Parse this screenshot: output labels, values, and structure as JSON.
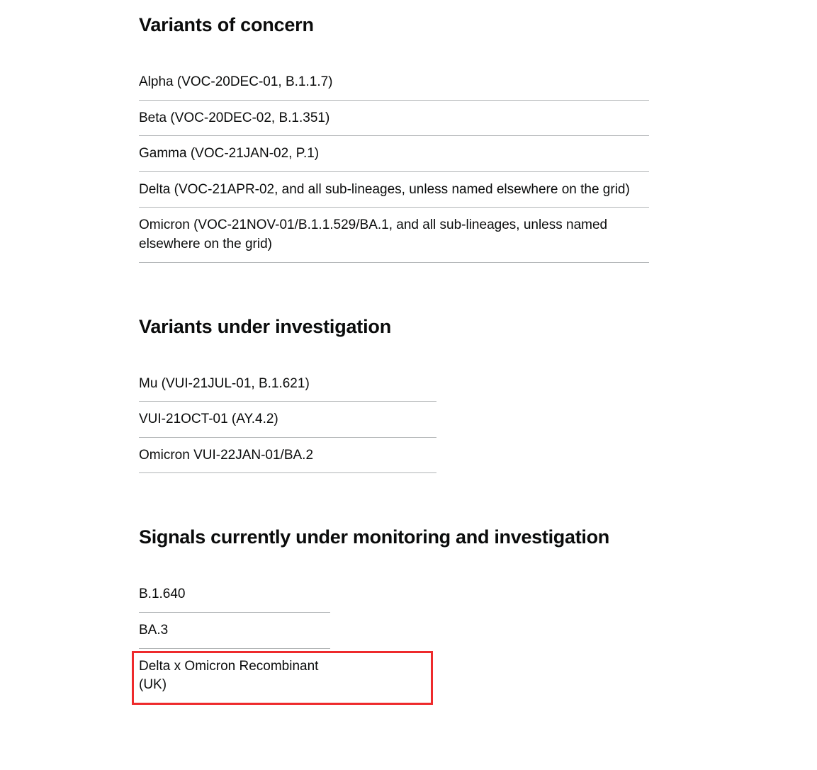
{
  "sections": {
    "concern": {
      "heading": "Variants of concern",
      "items": [
        "Alpha (VOC-20DEC-01, B.1.1.7)",
        "Beta (VOC-20DEC-02, B.1.351)",
        "Gamma (VOC-21JAN-02, P.1)",
        "Delta (VOC-21APR-02, and all sub-lineages, unless named elsewhere on the grid)",
        "Omicron (VOC-21NOV-01/B.1.1.529/BA.1, and all sub-lineages, unless named elsewhere on the grid)"
      ]
    },
    "investigation": {
      "heading": "Variants under investigation",
      "items": [
        "Mu (VUI-21JUL-01, B.1.621)",
        "VUI-21OCT-01 (AY.4.2)",
        "Omicron VUI-22JAN-01/BA.2"
      ]
    },
    "signals": {
      "heading": "Signals currently under monitoring and investigation",
      "items": [
        "B.1.640",
        "BA.3",
        "Delta x Omicron Recombinant (UK)"
      ]
    }
  },
  "colors": {
    "text": "#0b0c0c",
    "border": "#b1b4b6",
    "highlight": "#ee2a2c",
    "background": "#ffffff"
  },
  "typography": {
    "heading_fontsize": 27,
    "heading_weight": 700,
    "item_fontsize": 19,
    "item_weight": 400
  }
}
